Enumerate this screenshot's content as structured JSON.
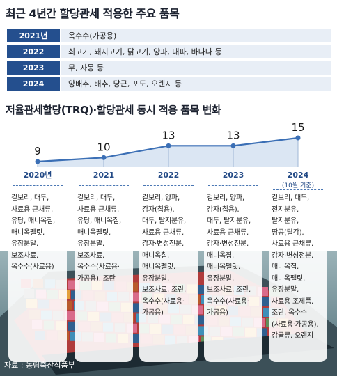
{
  "title1": "최근 4년간 할당관세 적용한 주요 품목",
  "table": [
    {
      "year": "2021년",
      "items": "옥수수(가공용)"
    },
    {
      "year": "2022",
      "items": "쇠고기, 돼지고기, 닭고기, 양파, 대파, 바나나 등"
    },
    {
      "year": "2023",
      "items": "무, 자몽 등"
    },
    {
      "year": "2024",
      "items": "양배추, 배추, 당근, 포도, 오렌지 등"
    }
  ],
  "title2": "저율관세할당(TRQ)·할당관세 동시 적용 품목 변화",
  "chart_data": {
    "type": "line",
    "title": "저율관세할당(TRQ)·할당관세 동시 적용 품목 변화",
    "categories": [
      "2020년",
      "2021",
      "2022",
      "2023",
      "2024"
    ],
    "category_subtitles": [
      "",
      "",
      "",
      "",
      "(10월 기준)"
    ],
    "values": [
      9,
      10,
      13,
      13,
      15
    ],
    "value_labels": [
      "9",
      "10",
      "13",
      "13",
      "15"
    ],
    "series_color": "#3b6fb5",
    "grid": false
  },
  "columns": [
    {
      "year": "2020년",
      "sub": "",
      "items": [
        "겉보리, 대두,",
        "사료용 근채류,",
        "유당, 매니옥칩,",
        "매니옥펠릿,",
        "유장분말,",
        "보조사료,",
        "옥수수(사료용)"
      ]
    },
    {
      "year": "2021",
      "sub": "",
      "items": [
        "겉보리, 대두,",
        "사료용 근채류,",
        "유당, 매니옥칩,",
        "매니옥펠릿,",
        "유장분말,",
        "보조사료,",
        "옥수수(사료용·",
        "가공용), 조란"
      ]
    },
    {
      "year": "2022",
      "sub": "",
      "items": [
        "겉보리, 양파,",
        "감자(칩용),",
        "대두, 탈지분유,",
        "사료용 근채류,",
        "감자·변성전분,",
        "매니옥칩,",
        "매니옥펠릿,",
        "유장분말,",
        "보조사료, 조란,",
        "옥수수(사료용·",
        "가공용)"
      ]
    },
    {
      "year": "2023",
      "sub": "",
      "items": [
        "겉보리, 양파,",
        "감자(칩용),",
        "대두, 탈지분유,",
        "사료용 근채류,",
        "감자·변성전분,",
        "매니옥칩,",
        "매니옥펠릿,",
        "유장분말,",
        "보조사료, 조란,",
        "옥수수(사료용·",
        "가공용)"
      ]
    },
    {
      "year": "2024",
      "sub": "(10월 기준)",
      "items": [
        "겉보리, 대두,",
        "전지분유,",
        "탈지분유,",
        "땅콩(탈각),",
        "사료용 근채류,",
        "감자·변성전분,",
        "매니옥칩,",
        "매니옥펠릿,",
        "유장분말,",
        "사료용 조제품,",
        "조란, 옥수수",
        "(사료용·가공용),",
        "감귤류, 오렌지"
      ]
    }
  ],
  "source": "자료 : 농림축산식품부",
  "colors": {
    "header_bg": "#244f8e",
    "row_bg": "#e8eef6",
    "accent": "#3b6fb5"
  }
}
